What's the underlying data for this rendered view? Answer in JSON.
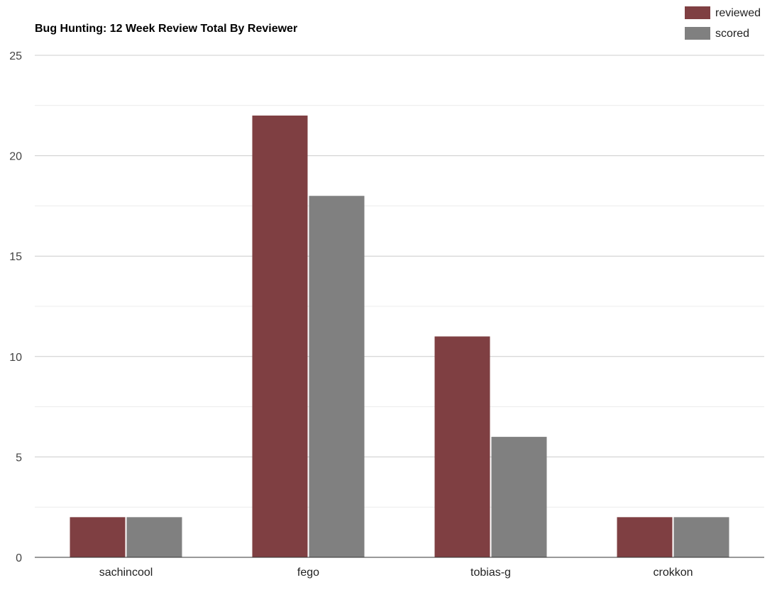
{
  "chart_data": {
    "type": "bar",
    "title": "Bug Hunting: 12 Week Review Total By Reviewer",
    "xlabel": "",
    "ylabel": "",
    "categories": [
      "sachincool",
      "fego",
      "tobias-g",
      "crokkon"
    ],
    "series": [
      {
        "name": "reviewed",
        "color": "#7f3f42",
        "values": [
          2,
          22,
          11,
          2
        ]
      },
      {
        "name": "scored",
        "color": "#808080",
        "values": [
          2,
          18,
          6,
          2
        ]
      }
    ],
    "ylim": [
      0,
      25
    ],
    "yticks": [
      "0",
      "5",
      "10",
      "15",
      "20",
      "25"
    ],
    "grid": true,
    "legend_position": "top-right"
  }
}
